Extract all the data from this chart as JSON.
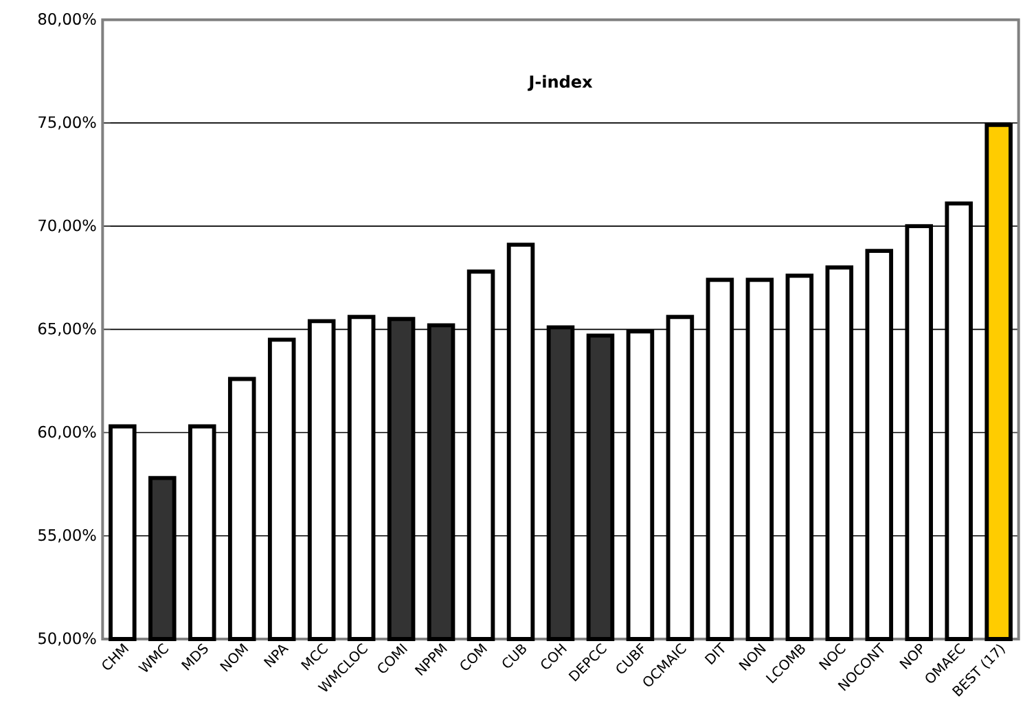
{
  "chart_data": {
    "type": "bar",
    "title": "J-index",
    "categories": [
      "CHM",
      "WMC",
      "MDS",
      "NOM",
      "NPA",
      "MCC",
      "WMCLOC",
      "COMI",
      "NPPM",
      "COM",
      "CUB",
      "COH",
      "DEPCC",
      "CUBF",
      "OCMAIC",
      "DIT",
      "NON",
      "LCOMB",
      "NOC",
      "NOCONT",
      "NOP",
      "OMAEC",
      "BEST (17)"
    ],
    "values": [
      60.3,
      57.8,
      60.3,
      62.6,
      64.5,
      65.4,
      65.6,
      65.5,
      65.2,
      67.8,
      69.1,
      65.1,
      64.7,
      64.9,
      65.6,
      67.4,
      67.4,
      67.6,
      68.0,
      68.8,
      70.0,
      71.1,
      74.9
    ],
    "colors": [
      "#ffffff",
      "#333333",
      "#ffffff",
      "#ffffff",
      "#ffffff",
      "#ffffff",
      "#ffffff",
      "#333333",
      "#333333",
      "#ffffff",
      "#ffffff",
      "#333333",
      "#333333",
      "#ffffff",
      "#ffffff",
      "#ffffff",
      "#ffffff",
      "#ffffff",
      "#ffffff",
      "#ffffff",
      "#ffffff",
      "#ffffff",
      "#ffcc00"
    ],
    "ylim": [
      50,
      80
    ],
    "yticks": [
      {
        "value": 50,
        "label": "50,00%"
      },
      {
        "value": 55,
        "label": "55,00%"
      },
      {
        "value": 60,
        "label": "60,00%"
      },
      {
        "value": 65,
        "label": "65,00%"
      },
      {
        "value": 70,
        "label": "70,00%"
      },
      {
        "value": 75,
        "label": "75,00%"
      },
      {
        "value": 80,
        "label": "80,00%"
      }
    ],
    "grid": "y"
  }
}
